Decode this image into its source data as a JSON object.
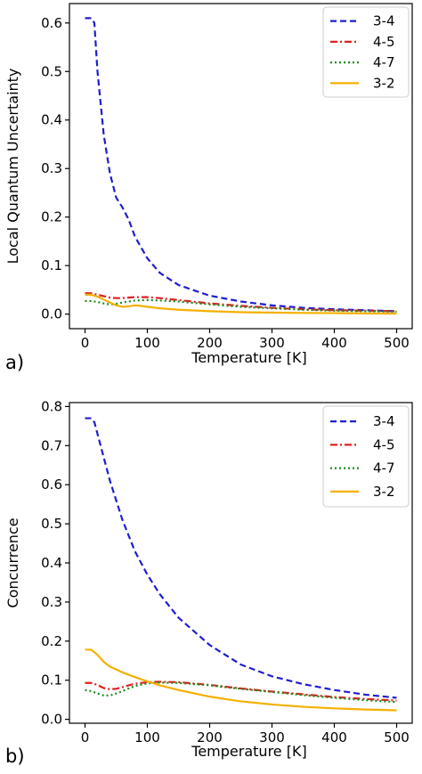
{
  "chart_data": [
    {
      "type": "line",
      "panel_label": "a)",
      "xlabel": "Temperature [K]",
      "ylabel": "Local Quantum Uncertainty",
      "xlim": [
        -25,
        525
      ],
      "ylim": [
        -0.03,
        0.64
      ],
      "xticks": [
        0,
        100,
        200,
        300,
        400,
        500
      ],
      "yticks": [
        0.0,
        0.1,
        0.2,
        0.3,
        0.4,
        0.5,
        0.6
      ],
      "ytick_labels": [
        "0.0",
        "0.1",
        "0.2",
        "0.3",
        "0.4",
        "0.5",
        "0.6"
      ],
      "grid": false,
      "legend_position": "top-right",
      "series": [
        {
          "name": "3-4",
          "color": "#1f1fd0",
          "dash": "dashed",
          "x": [
            0,
            10,
            15,
            20,
            30,
            40,
            50,
            60,
            70,
            80,
            100,
            120,
            150,
            200,
            250,
            300,
            350,
            400,
            450,
            500
          ],
          "y": [
            0.61,
            0.61,
            0.6,
            0.5,
            0.37,
            0.29,
            0.24,
            0.22,
            0.195,
            0.16,
            0.115,
            0.085,
            0.06,
            0.038,
            0.026,
            0.018,
            0.013,
            0.01,
            0.008,
            0.006
          ]
        },
        {
          "name": "4-5",
          "color": "#e02020",
          "dash": "dashdot",
          "x": [
            0,
            10,
            20,
            30,
            40,
            50,
            60,
            70,
            80,
            100,
            120,
            150,
            200,
            250,
            300,
            350,
            400,
            450,
            500
          ],
          "y": [
            0.043,
            0.043,
            0.04,
            0.037,
            0.034,
            0.033,
            0.033,
            0.034,
            0.035,
            0.035,
            0.033,
            0.029,
            0.022,
            0.017,
            0.013,
            0.01,
            0.008,
            0.007,
            0.006
          ]
        },
        {
          "name": "4-7",
          "color": "#1a8a1a",
          "dash": "dotted",
          "x": [
            0,
            10,
            20,
            30,
            40,
            50,
            60,
            70,
            80,
            100,
            120,
            150,
            200,
            250,
            300,
            350,
            400,
            450,
            500
          ],
          "y": [
            0.027,
            0.027,
            0.025,
            0.022,
            0.02,
            0.021,
            0.024,
            0.026,
            0.028,
            0.029,
            0.028,
            0.026,
            0.02,
            0.015,
            0.012,
            0.009,
            0.007,
            0.006,
            0.005
          ]
        },
        {
          "name": "3-2",
          "color": "#f5b000",
          "dash": "solid",
          "x": [
            0,
            10,
            20,
            30,
            40,
            50,
            60,
            70,
            80,
            90,
            100,
            120,
            150,
            200,
            250,
            300,
            350,
            400,
            450,
            500
          ],
          "y": [
            0.04,
            0.04,
            0.036,
            0.03,
            0.024,
            0.018,
            0.015,
            0.016,
            0.018,
            0.017,
            0.015,
            0.012,
            0.009,
            0.006,
            0.004,
            0.003,
            0.0025,
            0.002,
            0.0015,
            0.001
          ]
        }
      ]
    },
    {
      "type": "line",
      "panel_label": "b)",
      "xlabel": "Temperature [K]",
      "ylabel": "Concurrence",
      "xlim": [
        -25,
        525
      ],
      "ylim": [
        -0.01,
        0.81
      ],
      "xticks": [
        0,
        100,
        200,
        300,
        400,
        500
      ],
      "yticks": [
        0.0,
        0.1,
        0.2,
        0.3,
        0.4,
        0.5,
        0.6,
        0.7,
        0.8
      ],
      "ytick_labels": [
        "0.0",
        "0.1",
        "0.2",
        "0.3",
        "0.4",
        "0.5",
        "0.6",
        "0.7",
        "0.8"
      ],
      "grid": false,
      "legend_position": "top-right",
      "series": [
        {
          "name": "3-4",
          "color": "#1f1fd0",
          "dash": "dashed",
          "x": [
            0,
            10,
            15,
            20,
            30,
            40,
            50,
            60,
            80,
            100,
            120,
            150,
            200,
            250,
            300,
            350,
            400,
            450,
            500
          ],
          "y": [
            0.77,
            0.77,
            0.76,
            0.73,
            0.67,
            0.61,
            0.56,
            0.51,
            0.43,
            0.37,
            0.32,
            0.26,
            0.19,
            0.14,
            0.11,
            0.09,
            0.075,
            0.063,
            0.055
          ]
        },
        {
          "name": "4-5",
          "color": "#e02020",
          "dash": "dashdot",
          "x": [
            0,
            10,
            20,
            30,
            40,
            50,
            60,
            70,
            80,
            100,
            120,
            150,
            200,
            250,
            300,
            350,
            400,
            450,
            500
          ],
          "y": [
            0.093,
            0.093,
            0.088,
            0.08,
            0.077,
            0.078,
            0.082,
            0.087,
            0.091,
            0.095,
            0.096,
            0.095,
            0.088,
            0.079,
            0.071,
            0.064,
            0.057,
            0.052,
            0.048
          ]
        },
        {
          "name": "4-7",
          "color": "#1a8a1a",
          "dash": "dotted",
          "x": [
            0,
            10,
            20,
            30,
            40,
            50,
            60,
            70,
            80,
            100,
            120,
            150,
            200,
            250,
            300,
            350,
            400,
            450,
            500
          ],
          "y": [
            0.075,
            0.072,
            0.066,
            0.061,
            0.061,
            0.066,
            0.072,
            0.079,
            0.085,
            0.092,
            0.094,
            0.093,
            0.087,
            0.078,
            0.07,
            0.062,
            0.055,
            0.049,
            0.044
          ]
        },
        {
          "name": "3-2",
          "color": "#f5b000",
          "dash": "solid",
          "x": [
            0,
            10,
            20,
            30,
            40,
            60,
            80,
            100,
            120,
            150,
            200,
            250,
            300,
            350,
            400,
            450,
            500
          ],
          "y": [
            0.178,
            0.178,
            0.165,
            0.147,
            0.135,
            0.12,
            0.108,
            0.097,
            0.087,
            0.075,
            0.058,
            0.046,
            0.038,
            0.032,
            0.028,
            0.025,
            0.023
          ]
        }
      ]
    }
  ]
}
